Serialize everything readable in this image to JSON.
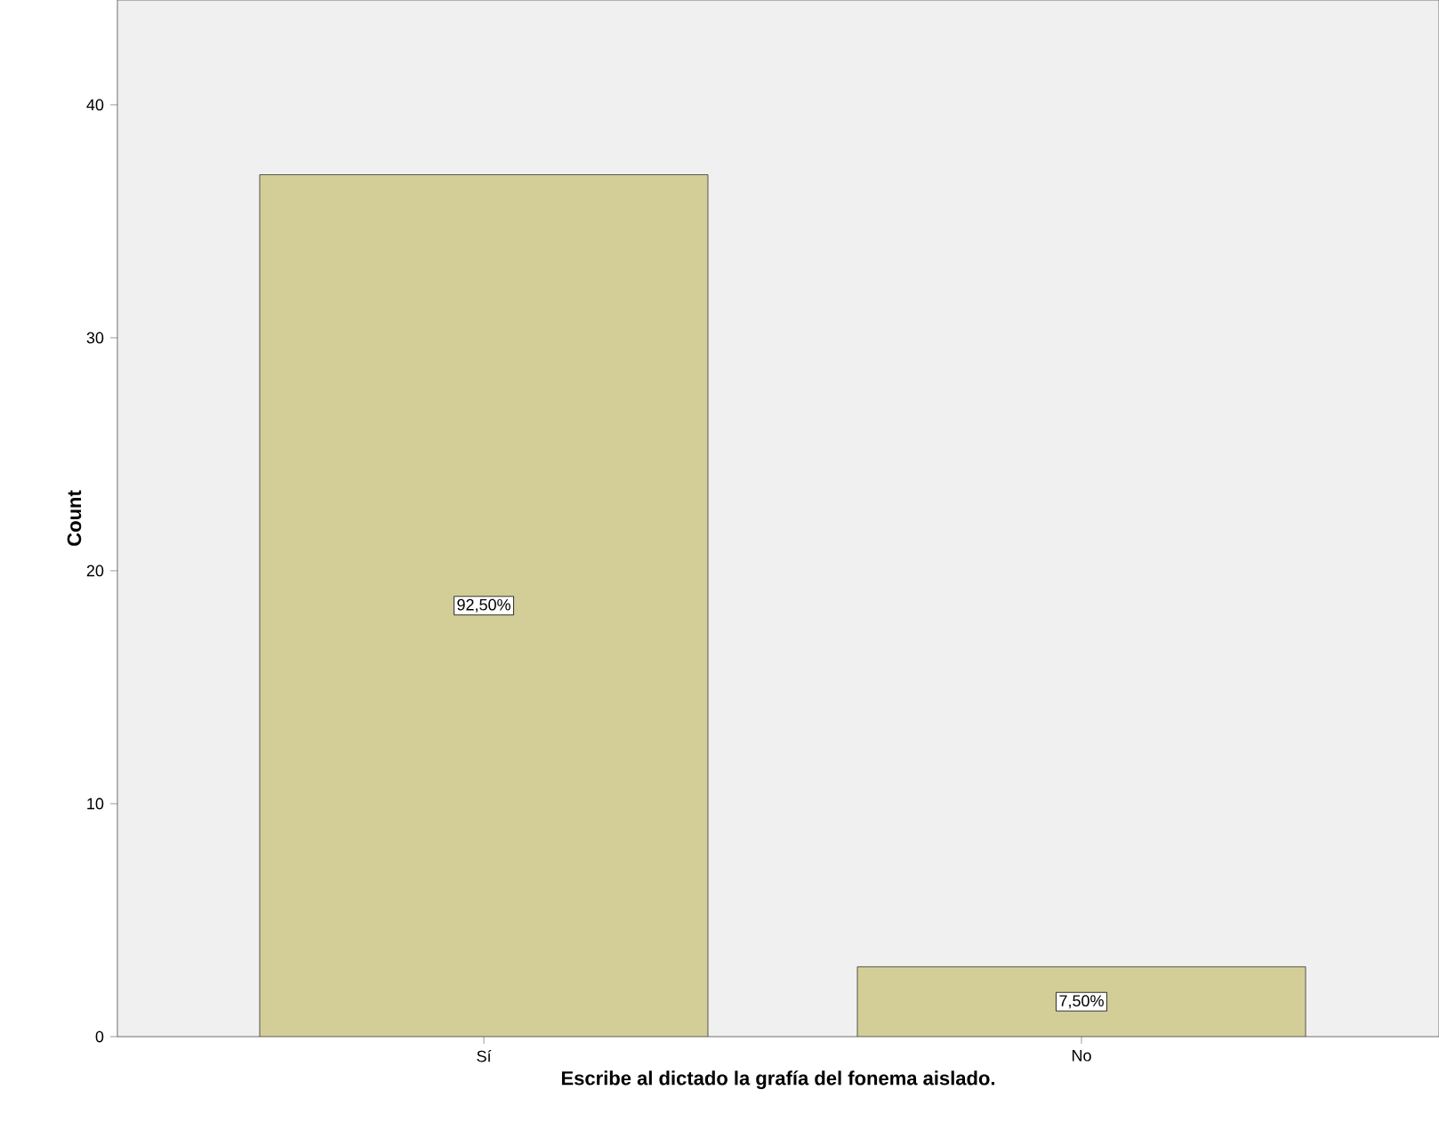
{
  "chart_data": {
    "type": "bar",
    "xlabel": "Escribe al dictado la grafía del fonema aislado.",
    "ylabel": "Count",
    "categories": [
      "Sí",
      "No"
    ],
    "values": [
      37,
      3
    ],
    "color": "#d3ce97",
    "annotations": [
      {
        "text": "92,50%",
        "x": "Sí",
        "y": 18.5
      },
      {
        "text": "7,50%",
        "x": "No",
        "y": 1.5
      }
    ],
    "ylim": [
      0,
      44.5
    ],
    "yticks": [
      0,
      10,
      20,
      30,
      40
    ],
    "grid": false
  }
}
